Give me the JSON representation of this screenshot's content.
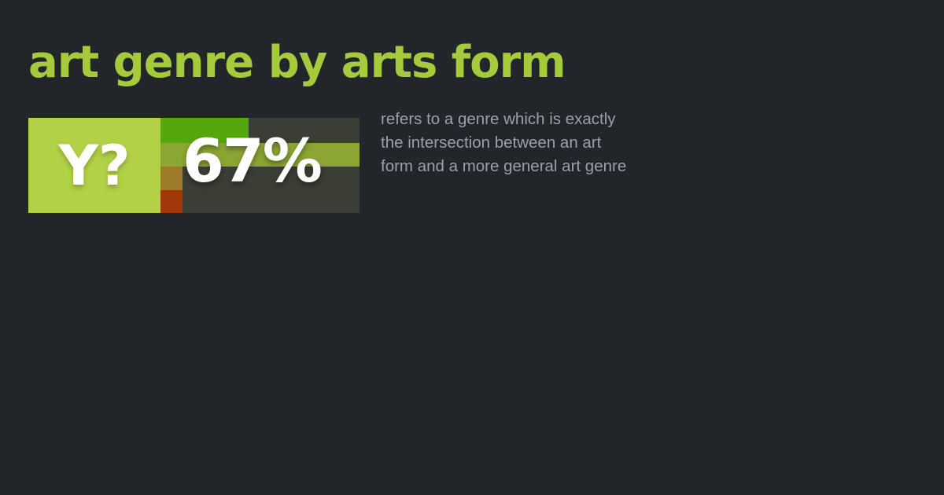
{
  "card": {
    "background_color": "#222529"
  },
  "header": {
    "title": "art genre by arts form",
    "title_color": "#a5ca3c"
  },
  "stat_tile": {
    "label": "Y?",
    "value": "67%",
    "colors": {
      "lime_square": "#b2d147",
      "green_block": "#56a70b",
      "olive_band": "#8ca634",
      "ochre_block": "#9e7b29",
      "red_block": "#a33708",
      "dark_block": "#3a3e35",
      "stat_text": "#ffffff"
    }
  },
  "description": {
    "color": "#99a1ab",
    "lines": [
      "refers to a genre which is exactly",
      "the intersection between an art",
      "form and a more general art genre"
    ]
  }
}
